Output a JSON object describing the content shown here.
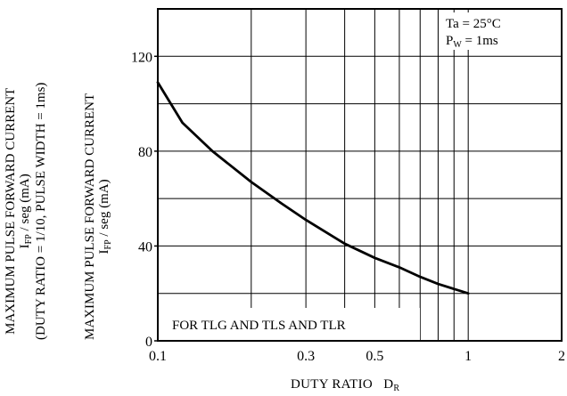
{
  "chart_data": {
    "type": "line",
    "xscale": "log",
    "xlim": [
      0.1,
      2
    ],
    "ylim": [
      0,
      140
    ],
    "grid": true,
    "xticks": [
      {
        "value": 0.1,
        "label": "0.1"
      },
      {
        "value": 0.3,
        "label": "0.3"
      },
      {
        "value": 0.5,
        "label": "0.5"
      },
      {
        "value": 1,
        "label": "1"
      },
      {
        "value": 2,
        "label": "2"
      }
    ],
    "yticks": [
      {
        "value": 0,
        "label": "0"
      },
      {
        "value": 40,
        "label": "40"
      },
      {
        "value": 80,
        "label": "80"
      },
      {
        "value": 120,
        "label": "120"
      }
    ],
    "x_gridlines": [
      0.2,
      0.3,
      0.4,
      0.5,
      0.6,
      0.7,
      0.8,
      0.9,
      1.0
    ],
    "y_gridlines": [
      20,
      40,
      60,
      80,
      100,
      120
    ],
    "series": [
      {
        "x": [
          0.1,
          0.12,
          0.15,
          0.2,
          0.25,
          0.3,
          0.4,
          0.5,
          0.6,
          0.7,
          0.8,
          1.0
        ],
        "y": [
          109,
          92,
          80,
          67,
          58,
          51,
          41,
          35,
          31,
          27,
          24,
          20
        ]
      }
    ],
    "xlabel_main": "DUTY RATIO",
    "xlabel_symbol": "D",
    "xlabel_sub": "R",
    "annotation_top_right": [
      "Ta = 25°C",
      "P",
      "W",
      " = 1ms"
    ],
    "annotation_box": "FOR TLG AND TLS AND  TLR"
  },
  "ylabel_outer": {
    "line1": "MAXIMUM PULSE FORWARD CURRENT",
    "line2_main": "I",
    "line2_sub": "FP",
    "line2_rest": " / seg   (mA)",
    "line3": "(DUTY RATIO = 1/10, PULSE  WIDTH = 1ms)"
  },
  "ylabel_inner": {
    "line1": "MAXIMUM PULSE FORWARD CURRENT",
    "line2_main": "I",
    "line2_sub": "FP",
    "line2_rest": " / seg   (mA)"
  }
}
